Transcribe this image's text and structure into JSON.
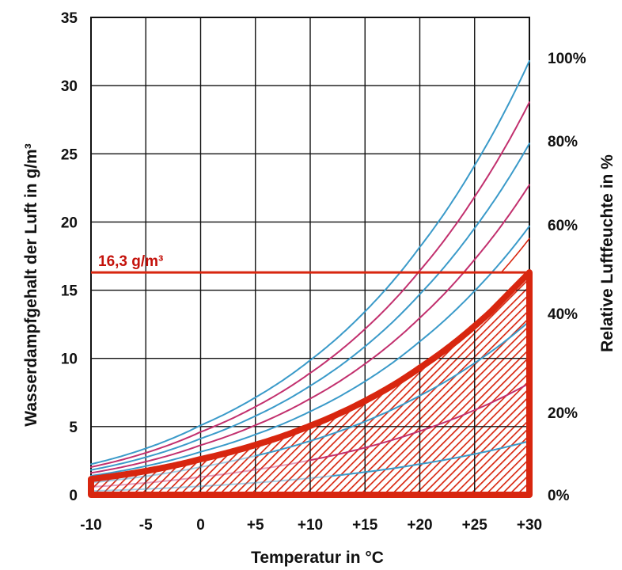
{
  "chart_data": {
    "type": "line",
    "title": "",
    "xlabel": "Temperatur in °C",
    "ylabel": "Wasserdampfgehalt der Luft in g/m³",
    "y2label": "Relative Luftfeuchte in %",
    "xlim": [
      -10,
      30
    ],
    "ylim": [
      0,
      35
    ],
    "x_ticks": [
      -10,
      -5,
      0,
      5,
      10,
      15,
      20,
      25,
      30
    ],
    "x_tick_labels": [
      "-10",
      "-5",
      "0",
      "+5",
      "+10",
      "+15",
      "+20",
      "+25",
      "+30"
    ],
    "y_ticks": [
      0,
      5,
      10,
      15,
      20,
      25,
      30,
      35
    ],
    "y_tick_labels": [
      "0",
      "5",
      "10",
      "15",
      "20",
      "25",
      "30",
      "35"
    ],
    "y2_ticks": [
      "0%",
      "20%",
      "40%",
      "60%",
      "80%",
      "100%"
    ],
    "grid": true,
    "colors": {
      "blue": "#3a9ac9",
      "magenta": "#c2306e",
      "red": "#d8260f",
      "grid": "#111111"
    },
    "saturation_curve": {
      "x": [
        -10,
        -5,
        0,
        5,
        10,
        15,
        20,
        25,
        30
      ],
      "values": [
        2.14,
        3.24,
        4.85,
        6.8,
        9.4,
        12.8,
        17.3,
        23.0,
        30.3
      ]
    },
    "series": [
      {
        "relative_humidity": 1.05,
        "color": "blue"
      },
      {
        "relative_humidity": 0.95,
        "color": "magenta"
      },
      {
        "relative_humidity": 0.85,
        "color": "blue"
      },
      {
        "relative_humidity": 0.75,
        "color": "magenta"
      },
      {
        "relative_humidity": 0.65,
        "color": "blue"
      },
      {
        "relative_humidity": 0.538,
        "color": "red",
        "emphasis": true,
        "x_max": 26.5
      },
      {
        "relative_humidity": 0.42,
        "color": "blue",
        "x_min": 5,
        "hatched": true
      },
      {
        "relative_humidity": 0.27,
        "color": "magenta",
        "x_min": 10,
        "hatched": true
      },
      {
        "relative_humidity": 0.13,
        "color": "blue",
        "x_min": 12,
        "hatched": true
      },
      {
        "relative_humidity": 0.62,
        "color": "red",
        "thin": true,
        "x_min": 26.5
      }
    ],
    "threshold": {
      "y": 16.3,
      "label": "16,3 g/m³"
    },
    "hatched_region": {
      "x_range": [
        -10,
        30
      ],
      "y_max": 16.3
    }
  }
}
